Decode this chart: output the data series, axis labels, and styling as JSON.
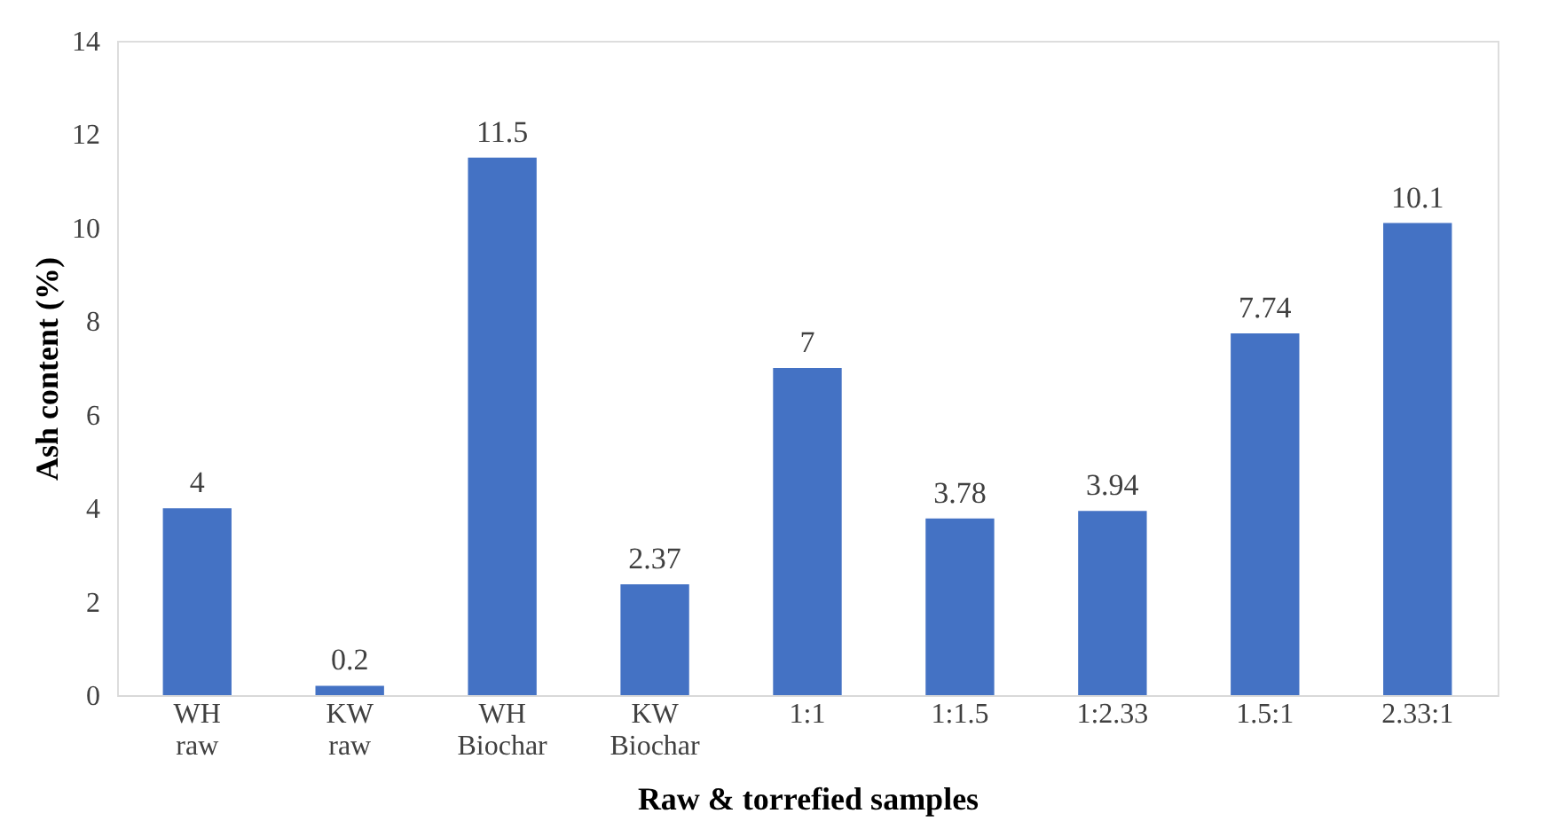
{
  "chart_data": {
    "type": "bar",
    "categories": [
      "WH raw",
      "KW raw",
      "WH Biochar",
      "KW Biochar",
      "1:1",
      "1:1.5",
      "1:2.33",
      "1.5:1",
      "2.33:1"
    ],
    "values": [
      4,
      0.2,
      11.5,
      2.37,
      7,
      3.78,
      3.94,
      7.74,
      10.1
    ],
    "color": "#4472c4",
    "xlabel": "Raw & torrefied samples",
    "ylabel": "Ash content (%)",
    "ylim": [
      0,
      14
    ],
    "yticks": [
      0,
      2,
      4,
      6,
      8,
      10,
      12,
      14
    ],
    "data_labels": true,
    "grid": false
  }
}
